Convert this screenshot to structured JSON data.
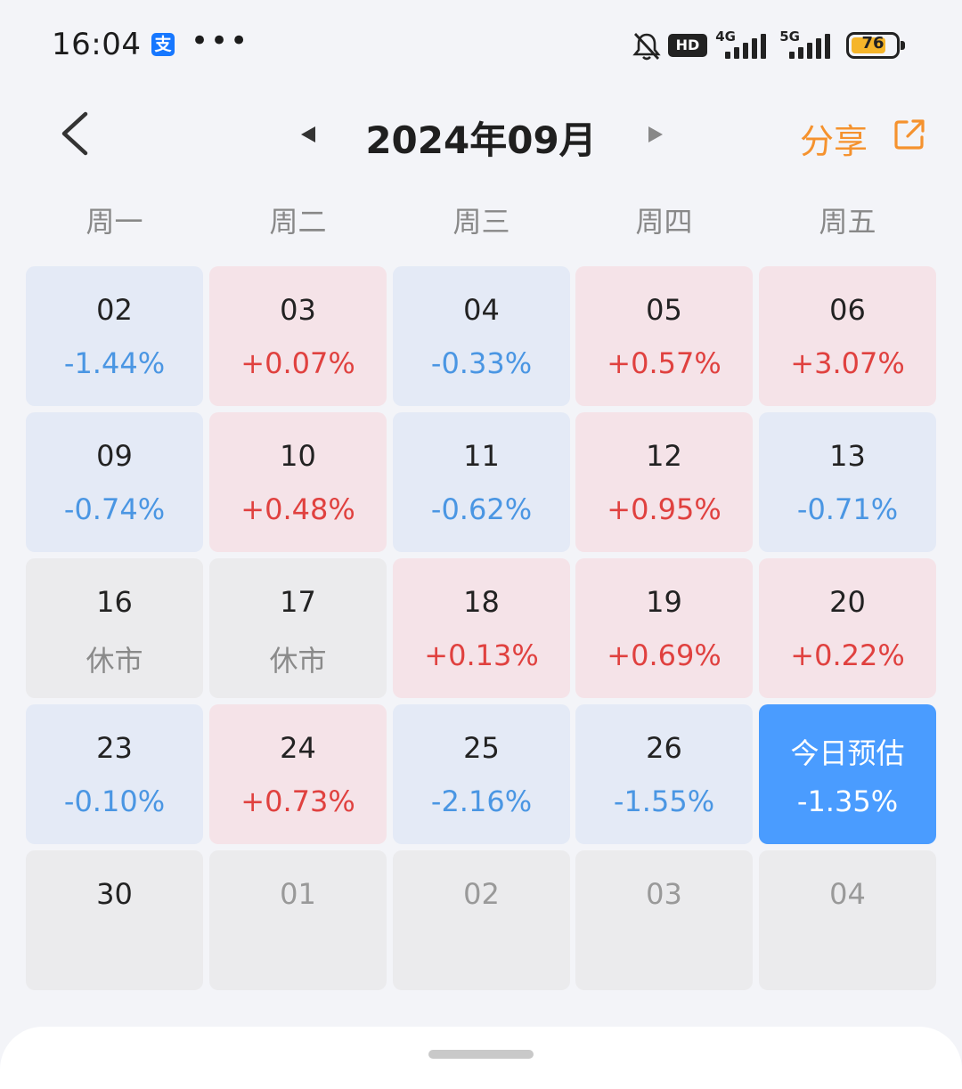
{
  "status_bar": {
    "time": "16:04",
    "app_icon": "支",
    "more": "•••",
    "hd_label": "HD",
    "net1": "4G",
    "net2": "5G",
    "battery": "76"
  },
  "header": {
    "title": "2024年09月",
    "share_label": "分享"
  },
  "weekdays": [
    "周一",
    "周二",
    "周三",
    "周四",
    "周五"
  ],
  "calendar": {
    "rows": [
      [
        {
          "day": "02",
          "value": "-1.44%"
        },
        {
          "day": "03",
          "value": "+0.07%"
        },
        {
          "day": "04",
          "value": "-0.33%"
        },
        {
          "day": "05",
          "value": "+0.57%"
        },
        {
          "day": "06",
          "value": "+3.07%"
        }
      ],
      [
        {
          "day": "09",
          "value": "-0.74%"
        },
        {
          "day": "10",
          "value": "+0.48%"
        },
        {
          "day": "11",
          "value": "-0.62%"
        },
        {
          "day": "12",
          "value": "+0.95%"
        },
        {
          "day": "13",
          "value": "-0.71%"
        }
      ],
      [
        {
          "day": "16",
          "value": "休市"
        },
        {
          "day": "17",
          "value": "休市"
        },
        {
          "day": "18",
          "value": "+0.13%"
        },
        {
          "day": "19",
          "value": "+0.69%"
        },
        {
          "day": "20",
          "value": "+0.22%"
        }
      ],
      [
        {
          "day": "23",
          "value": "-0.10%"
        },
        {
          "day": "24",
          "value": "+0.73%"
        },
        {
          "day": "25",
          "value": "-2.16%"
        },
        {
          "day": "26",
          "value": "-1.55%"
        },
        {
          "day": "今日预估",
          "value": "-1.35%"
        }
      ],
      [
        {
          "day": "30",
          "value": ""
        },
        {
          "day": "01",
          "value": ""
        },
        {
          "day": "02",
          "value": ""
        },
        {
          "day": "03",
          "value": ""
        },
        {
          "day": "04",
          "value": ""
        }
      ]
    ]
  },
  "colors": {
    "up": "#e0413f",
    "down": "#4a96e3",
    "today": "#4a9cff",
    "accent": "#f5922e"
  }
}
